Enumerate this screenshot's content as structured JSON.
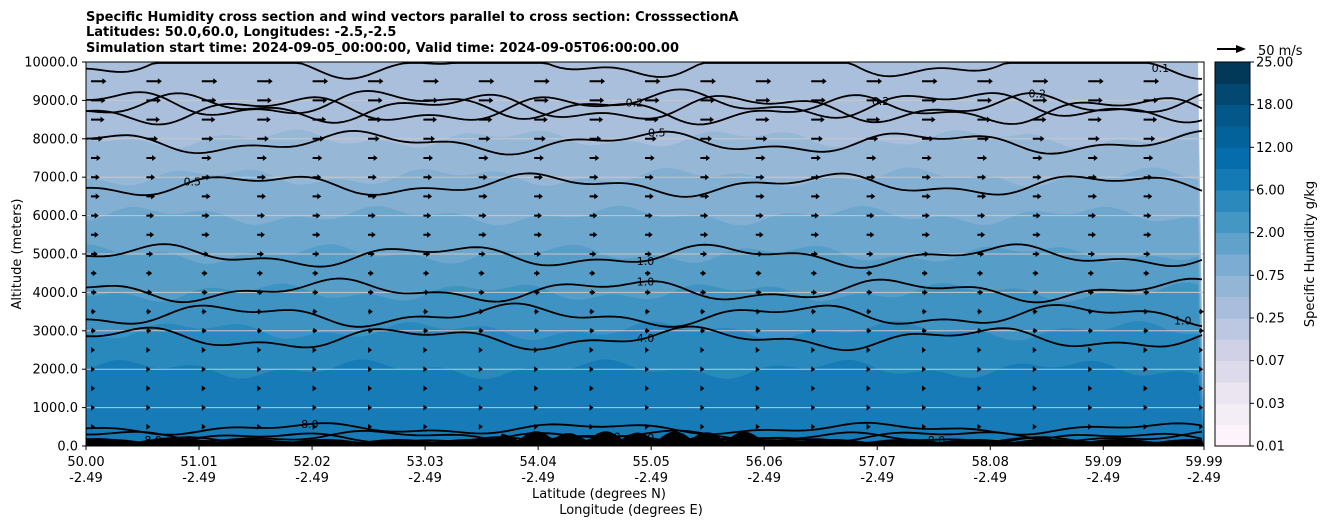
{
  "chart_data": {
    "type": "heatmap",
    "title": [
      "Specific Humidity cross section and wind vectors parallel to cross section: CrosssectionA",
      "Latitudes: 50.0,60.0, Longitudes: -2.5,-2.5",
      "Simulation start time: 2024-09-05_00:00:00, Valid time: 2024-09-05T06:00:00.00"
    ],
    "xlabel_lines": [
      "Latitude (degrees N)",
      "Longitude (degrees E)"
    ],
    "ylabel": "Altitude (meters)",
    "x_ticks": [
      {
        "lat": "50.00",
        "lon": "-2.49"
      },
      {
        "lat": "51.01",
        "lon": "-2.49"
      },
      {
        "lat": "52.02",
        "lon": "-2.49"
      },
      {
        "lat": "53.03",
        "lon": "-2.49"
      },
      {
        "lat": "54.04",
        "lon": "-2.49"
      },
      {
        "lat": "55.05",
        "lon": "-2.49"
      },
      {
        "lat": "56.06",
        "lon": "-2.49"
      },
      {
        "lat": "57.07",
        "lon": "-2.49"
      },
      {
        "lat": "58.08",
        "lon": "-2.49"
      },
      {
        "lat": "59.09",
        "lon": "-2.49"
      },
      {
        "lat": "59.99",
        "lon": "-2.49"
      }
    ],
    "xlim": [
      50.0,
      59.99
    ],
    "y_ticks": [
      "0.0",
      "1000.0",
      "2000.0",
      "3000.0",
      "4000.0",
      "5000.0",
      "6000.0",
      "7000.0",
      "8000.0",
      "9000.0",
      "10000.0"
    ],
    "ylim": [
      0,
      10000
    ],
    "grid": "horizontal",
    "colorbar": {
      "label": "Specific Humidity g/kg",
      "ticks": [
        "0.01",
        "0.03",
        "0.07",
        "0.25",
        "0.75",
        "2.00",
        "6.00",
        "12.00",
        "18.00",
        "25.00"
      ],
      "levels": [
        0.01,
        0.02,
        0.03,
        0.05,
        0.07,
        0.1,
        0.25,
        0.5,
        0.75,
        1.0,
        2.0,
        4.0,
        6.0,
        8.0,
        12.0,
        15.0,
        18.0,
        20.0,
        25.0
      ],
      "colormap": "PuBu"
    },
    "humidity_bands": [
      {
        "alt_top": 10000,
        "q": 0.15
      },
      {
        "alt_top": 9000,
        "q": 0.2
      },
      {
        "alt_top": 8000,
        "q": 0.3
      },
      {
        "alt_top": 7000,
        "q": 0.5
      },
      {
        "alt_top": 6000,
        "q": 0.8
      },
      {
        "alt_top": 5000,
        "q": 1.2
      },
      {
        "alt_top": 4000,
        "q": 2.0
      },
      {
        "alt_top": 3000,
        "q": 4.5
      },
      {
        "alt_top": 2000,
        "q": 6.0
      },
      {
        "alt_top": 1000,
        "q": 7.5
      }
    ],
    "contours": [
      {
        "level": "0.1",
        "alt": 9950,
        "label_lat": 59.6
      },
      {
        "level": "0.2",
        "alt": 8900,
        "label_lat": 54.9
      },
      {
        "level": "0.2",
        "alt": 8750,
        "label_lat": 57.1
      },
      {
        "level": "0.2",
        "alt": 8800,
        "label_lat": 58.5
      },
      {
        "level": "0.5",
        "alt": 7900,
        "label_lat": 55.1
      },
      {
        "level": "0.5",
        "alt": 6800,
        "label_lat": 50.95
      },
      {
        "level": "1.0",
        "alt": 4950,
        "label_lat": 55.0
      },
      {
        "level": "1.0",
        "alt": 4050,
        "label_lat": 55.0
      },
      {
        "level": "1.0",
        "alt": 3400,
        "label_lat": 59.8
      },
      {
        "level": "4.0",
        "alt": 2800,
        "label_lat": 55.0
      },
      {
        "level": "8.0",
        "alt": 450,
        "label_lat": 52.0
      },
      {
        "level": "8.0",
        "alt": 80,
        "label_lat": 50.6
      },
      {
        "level": "8.0",
        "alt": 250,
        "label_lat": 54.7
      },
      {
        "level": "8.0",
        "alt": 200,
        "label_lat": 55.0
      },
      {
        "level": "8.0",
        "alt": 50,
        "label_lat": 57.6
      }
    ],
    "wind_key": {
      "label": "50 m/s",
      "speed": 50
    },
    "wind_rows": [
      {
        "alt": 9500,
        "speed": 16
      },
      {
        "alt": 9000,
        "speed": 15
      },
      {
        "alt": 8500,
        "speed": 14
      },
      {
        "alt": 8000,
        "speed": 12
      },
      {
        "alt": 7500,
        "speed": 10
      },
      {
        "alt": 7000,
        "speed": 9
      },
      {
        "alt": 6500,
        "speed": 9
      },
      {
        "alt": 6000,
        "speed": 8
      },
      {
        "alt": 5500,
        "speed": 8
      },
      {
        "alt": 5000,
        "speed": 7
      },
      {
        "alt": 4500,
        "speed": 6
      },
      {
        "alt": 4000,
        "speed": 6
      },
      {
        "alt": 3500,
        "speed": 5
      },
      {
        "alt": 3000,
        "speed": 5
      },
      {
        "alt": 2500,
        "speed": 4
      },
      {
        "alt": 2000,
        "speed": 4
      },
      {
        "alt": 1500,
        "speed": 4
      },
      {
        "alt": 1000,
        "speed": 3
      },
      {
        "alt": 500,
        "speed": 3
      }
    ],
    "colors": {
      "terrain": "#000000",
      "contour": "#000000",
      "grid": "#c8c8c8"
    }
  }
}
